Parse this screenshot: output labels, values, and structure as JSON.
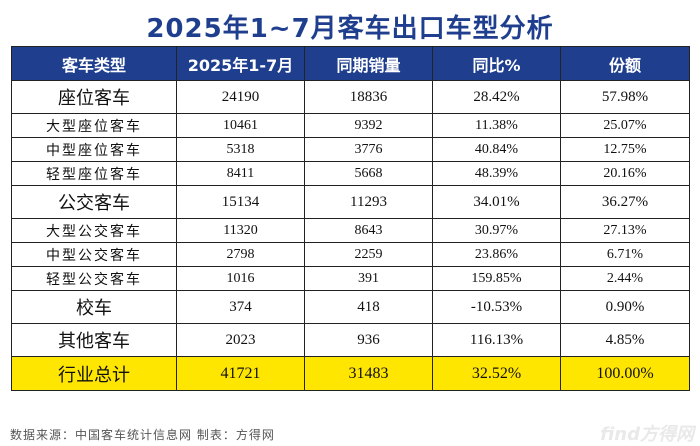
{
  "title": "2025年1~7月客车出口车型分析",
  "headers": [
    "客车类型",
    "2025年1-7月",
    "同期销量",
    "同比%",
    "份额"
  ],
  "rows": [
    {
      "type": "座位客车",
      "current": "24190",
      "prior": "18836",
      "yoy": "28.42%",
      "share": "57.98%"
    },
    {
      "type": "大型座位客车",
      "current": "10461",
      "prior": "9392",
      "yoy": "11.38%",
      "share": "25.07%"
    },
    {
      "type": "中型座位客车",
      "current": "5318",
      "prior": "3776",
      "yoy": "40.84%",
      "share": "12.75%"
    },
    {
      "type": "轻型座位客车",
      "current": "8411",
      "prior": "5668",
      "yoy": "48.39%",
      "share": "20.16%"
    },
    {
      "type": "公交客车",
      "current": "15134",
      "prior": "11293",
      "yoy": "34.01%",
      "share": "36.27%"
    },
    {
      "type": "大型公交客车",
      "current": "11320",
      "prior": "8643",
      "yoy": "30.97%",
      "share": "27.13%"
    },
    {
      "type": "中型公交客车",
      "current": "2798",
      "prior": "2259",
      "yoy": "23.86%",
      "share": "6.71%"
    },
    {
      "type": "轻型公交客车",
      "current": "1016",
      "prior": "391",
      "yoy": "159.85%",
      "share": "2.44%"
    },
    {
      "type": "校车",
      "current": "374",
      "prior": "418",
      "yoy": "-10.53%",
      "share": "0.90%"
    },
    {
      "type": "其他客车",
      "current": "2023",
      "prior": "936",
      "yoy": "116.13%",
      "share": "4.85%"
    },
    {
      "type": "行业总计",
      "current": "41721",
      "prior": "31483",
      "yoy": "32.52%",
      "share": "100.00%"
    }
  ],
  "footer": "数据来源：中国客车统计信息网  制表：方得网",
  "watermark": "find方得网",
  "colors": {
    "header_bg": "#1f3f8e",
    "title": "#1f3f8e",
    "total_bg": "#ffe600"
  }
}
